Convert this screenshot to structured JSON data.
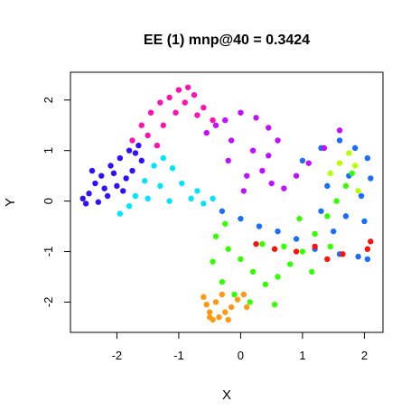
{
  "chart_data": {
    "type": "scatter",
    "title": "EE (1) mnp@40 = 0.3424",
    "xlabel": "X",
    "ylabel": "Y",
    "xlim": [
      -2.75,
      2.3
    ],
    "ylim": [
      -2.6,
      2.55
    ],
    "xticks": [
      {
        "value": -2,
        "label": "-2"
      },
      {
        "value": -1,
        "label": "-1"
      },
      {
        "value": 0,
        "label": "0"
      },
      {
        "value": 1,
        "label": "1"
      },
      {
        "value": 2,
        "label": "2"
      }
    ],
    "yticks": [
      {
        "value": -2,
        "label": "-2"
      },
      {
        "value": -1,
        "label": "-1"
      },
      {
        "value": 0,
        "label": "0"
      },
      {
        "value": 1,
        "label": "1"
      },
      {
        "value": 2,
        "label": "2"
      }
    ],
    "grid": false,
    "legend": "none",
    "marker": "filled-circle",
    "series": [
      {
        "color": "#2e10ff",
        "points": [
          [
            -2.55,
            0.05
          ],
          [
            -2.45,
            0.15
          ],
          [
            -2.35,
            0.35
          ],
          [
            -2.25,
            0.5
          ],
          [
            -2.1,
            0.7
          ],
          [
            -1.95,
            0.85
          ],
          [
            -1.8,
            1.0
          ],
          [
            -1.65,
            1.1
          ],
          [
            -2.5,
            -0.05
          ],
          [
            -2.3,
            -0.02
          ],
          [
            -2.15,
            0.1
          ],
          [
            -2.0,
            0.3
          ],
          [
            -1.85,
            0.45
          ],
          [
            -1.75,
            0.6
          ],
          [
            -1.6,
            0.8
          ],
          [
            -2.4,
            0.6
          ],
          [
            -2.2,
            0.25
          ],
          [
            -1.9,
            0.2
          ],
          [
            -2.05,
            0.55
          ],
          [
            -1.7,
            0.95
          ]
        ]
      },
      {
        "color": "#1a6eff",
        "points": [
          [
            1.0,
            0.8
          ],
          [
            1.3,
            1.05
          ],
          [
            1.6,
            1.2
          ],
          [
            1.85,
            1.05
          ],
          [
            2.05,
            0.85
          ],
          [
            2.1,
            0.45
          ],
          [
            1.95,
            0.1
          ],
          [
            1.7,
            -0.3
          ],
          [
            1.5,
            -0.6
          ],
          [
            1.9,
            -1.1
          ],
          [
            2.05,
            -1.15
          ],
          [
            1.6,
            -1.05
          ],
          [
            1.2,
            -0.95
          ],
          [
            0.9,
            -0.75
          ],
          [
            0.6,
            -0.6
          ],
          [
            0.3,
            -0.5
          ],
          [
            0.0,
            -0.35
          ],
          [
            -0.3,
            -0.2
          ],
          [
            1.75,
            0.5
          ],
          [
            1.4,
            0.3
          ],
          [
            2.0,
            -0.4
          ],
          [
            1.3,
            -0.2
          ]
        ]
      },
      {
        "color": "#00e5ff",
        "points": [
          [
            -1.95,
            -0.25
          ],
          [
            -1.8,
            -0.1
          ],
          [
            -1.7,
            0.1
          ],
          [
            -1.55,
            0.4
          ],
          [
            -1.4,
            0.7
          ],
          [
            -1.25,
            0.85
          ],
          [
            -1.1,
            0.65
          ],
          [
            -0.95,
            0.35
          ],
          [
            -0.8,
            0.05
          ],
          [
            -0.6,
            -0.05
          ],
          [
            -0.45,
            0.05
          ],
          [
            -1.3,
            0.3
          ],
          [
            -1.15,
            0.0
          ],
          [
            -0.7,
            0.2
          ],
          [
            -1.5,
            0.05
          ]
        ]
      },
      {
        "color": "#ff10b0",
        "points": [
          [
            -1.75,
            1.2
          ],
          [
            -1.6,
            1.5
          ],
          [
            -1.45,
            1.75
          ],
          [
            -1.3,
            1.95
          ],
          [
            -1.15,
            2.05
          ],
          [
            -1.0,
            2.2
          ],
          [
            -0.85,
            2.25
          ],
          [
            -0.75,
            2.1
          ],
          [
            -0.6,
            1.85
          ],
          [
            -0.45,
            1.6
          ],
          [
            -1.5,
            1.3
          ],
          [
            -1.25,
            1.5
          ],
          [
            -1.05,
            1.75
          ],
          [
            -0.9,
            1.95
          ],
          [
            -0.7,
            1.7
          ],
          [
            -1.35,
            1.1
          ]
        ]
      },
      {
        "color": "#c010ff",
        "points": [
          [
            -0.55,
            1.35
          ],
          [
            -0.25,
            1.6
          ],
          [
            0.0,
            1.75
          ],
          [
            0.25,
            1.65
          ],
          [
            0.45,
            1.45
          ],
          [
            0.6,
            1.2
          ],
          [
            0.45,
            0.9
          ],
          [
            0.35,
            0.6
          ],
          [
            0.5,
            0.35
          ],
          [
            0.7,
            0.25
          ],
          [
            0.9,
            0.5
          ],
          [
            1.1,
            0.75
          ],
          [
            1.35,
            1.05
          ],
          [
            1.6,
            1.4
          ],
          [
            -0.2,
            0.8
          ],
          [
            0.1,
            0.5
          ],
          [
            0.05,
            0.2
          ],
          [
            -0.15,
            1.2
          ],
          [
            0.2,
            1.0
          ],
          [
            -0.4,
            1.5
          ]
        ]
      },
      {
        "color": "#33ff00",
        "points": [
          [
            -0.4,
            -0.7
          ],
          [
            -0.2,
            -0.95
          ],
          [
            0.0,
            -1.15
          ],
          [
            0.2,
            -1.4
          ],
          [
            0.4,
            -1.65
          ],
          [
            0.6,
            -1.5
          ],
          [
            0.8,
            -1.25
          ],
          [
            1.0,
            -1.0
          ],
          [
            1.2,
            -0.65
          ],
          [
            1.4,
            -0.3
          ],
          [
            1.55,
            0.0
          ],
          [
            1.7,
            0.3
          ],
          [
            1.8,
            0.55
          ],
          [
            -0.3,
            -1.6
          ],
          [
            -0.1,
            -1.85
          ],
          [
            0.15,
            -2.0
          ],
          [
            -0.45,
            -1.2
          ],
          [
            0.35,
            -0.85
          ],
          [
            0.7,
            -0.9
          ],
          [
            1.15,
            -1.4
          ],
          [
            1.45,
            -0.9
          ],
          [
            0.95,
            -0.35
          ],
          [
            -0.25,
            -0.45
          ],
          [
            0.55,
            -2.05
          ]
        ]
      },
      {
        "color": "#b8ff00",
        "points": [
          [
            1.75,
            0.95
          ],
          [
            1.85,
            0.7
          ],
          [
            1.6,
            0.75
          ],
          [
            1.9,
            0.2
          ],
          [
            1.45,
            0.55
          ]
        ]
      },
      {
        "color": "#ff9a10",
        "points": [
          [
            -0.6,
            -1.9
          ],
          [
            -0.55,
            -2.05
          ],
          [
            -0.5,
            -2.2
          ],
          [
            -0.45,
            -2.35
          ],
          [
            -0.35,
            -2.3
          ],
          [
            -0.25,
            -2.2
          ],
          [
            -0.15,
            -2.1
          ],
          [
            -0.05,
            -1.95
          ],
          [
            0.05,
            -1.85
          ],
          [
            -0.4,
            -2.0
          ],
          [
            -0.3,
            -1.85
          ],
          [
            -0.2,
            -2.35
          ],
          [
            -0.5,
            -2.3
          ],
          [
            0.1,
            -2.1
          ]
        ]
      },
      {
        "color": "#ff1010",
        "points": [
          [
            0.55,
            -0.95
          ],
          [
            0.9,
            -1.0
          ],
          [
            1.2,
            -0.9
          ],
          [
            1.65,
            -1.05
          ],
          [
            2.05,
            -0.95
          ],
          [
            2.1,
            -0.8
          ],
          [
            0.25,
            -0.85
          ],
          [
            1.4,
            -1.15
          ]
        ]
      }
    ]
  }
}
